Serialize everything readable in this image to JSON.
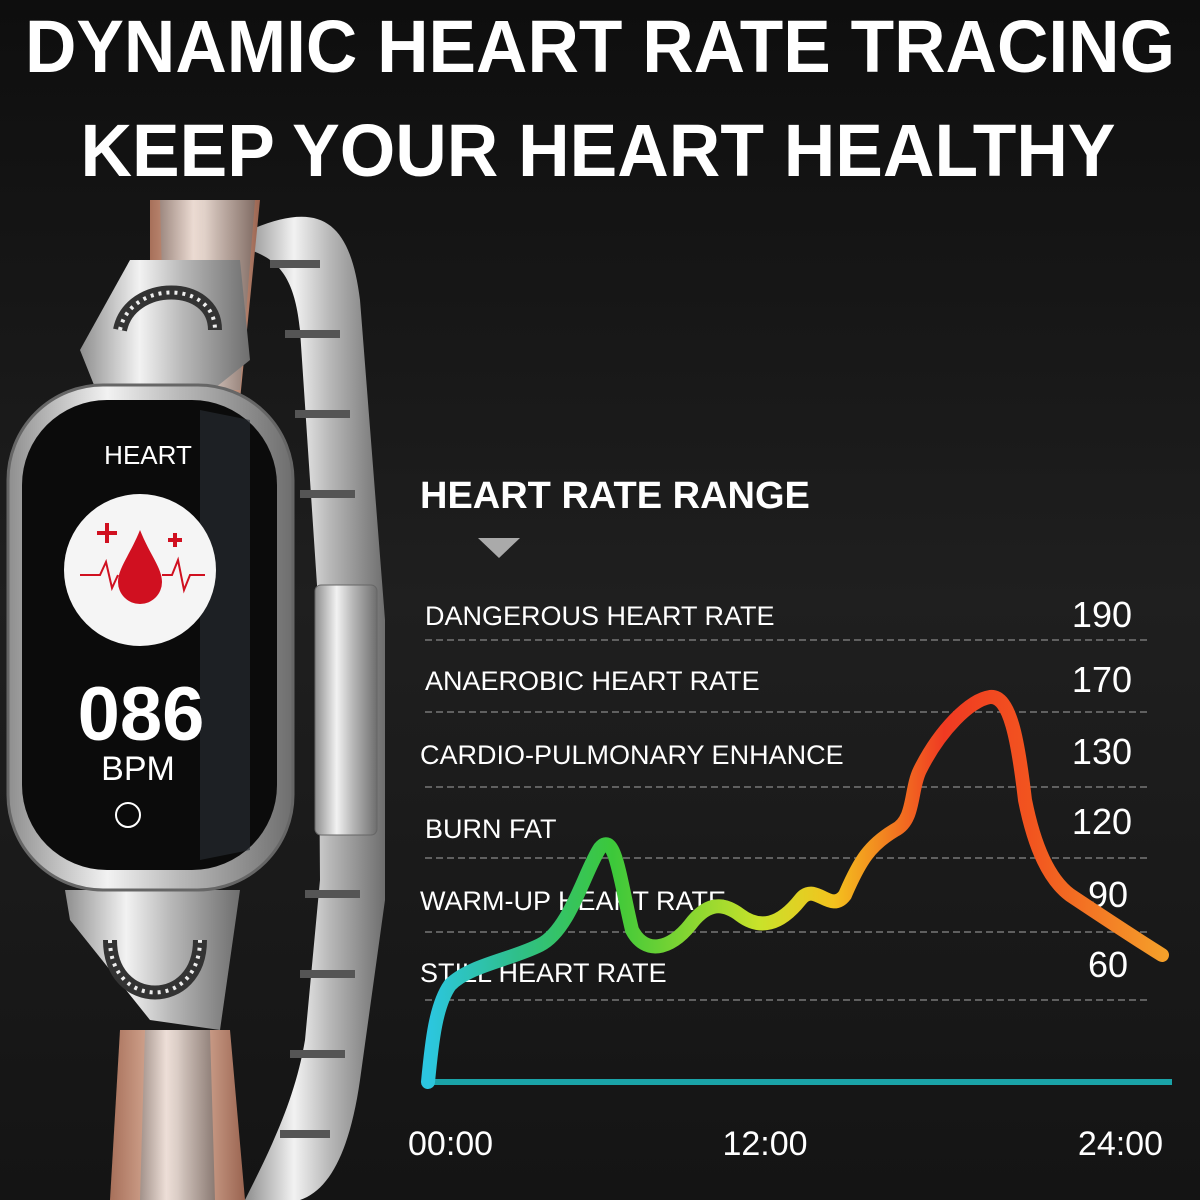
{
  "header": {
    "lines": [
      "DYNAMIC HEART RATE TRACING",
      "KEEP YOUR HEART HEALTHY"
    ]
  },
  "watch": {
    "label": "HEART",
    "reading": "086",
    "unit": "BPM"
  },
  "range": {
    "title": "HEART RATE RANGE",
    "rows": [
      {
        "label": "DANGEROUS HEART RATE",
        "value": 190
      },
      {
        "label": "ANAEROBIC HEART RATE",
        "value": 170
      },
      {
        "label": "CARDIO-PULMONARY ENHANCE",
        "value": 130
      },
      {
        "label": "BURN FAT",
        "value": 120
      },
      {
        "label": "WARM-UP HEART RATE",
        "value": 90
      },
      {
        "label": "STILL HEART RATE",
        "value": 60
      }
    ]
  },
  "time_axis": [
    "00:00",
    "12:00",
    "24:00"
  ]
}
